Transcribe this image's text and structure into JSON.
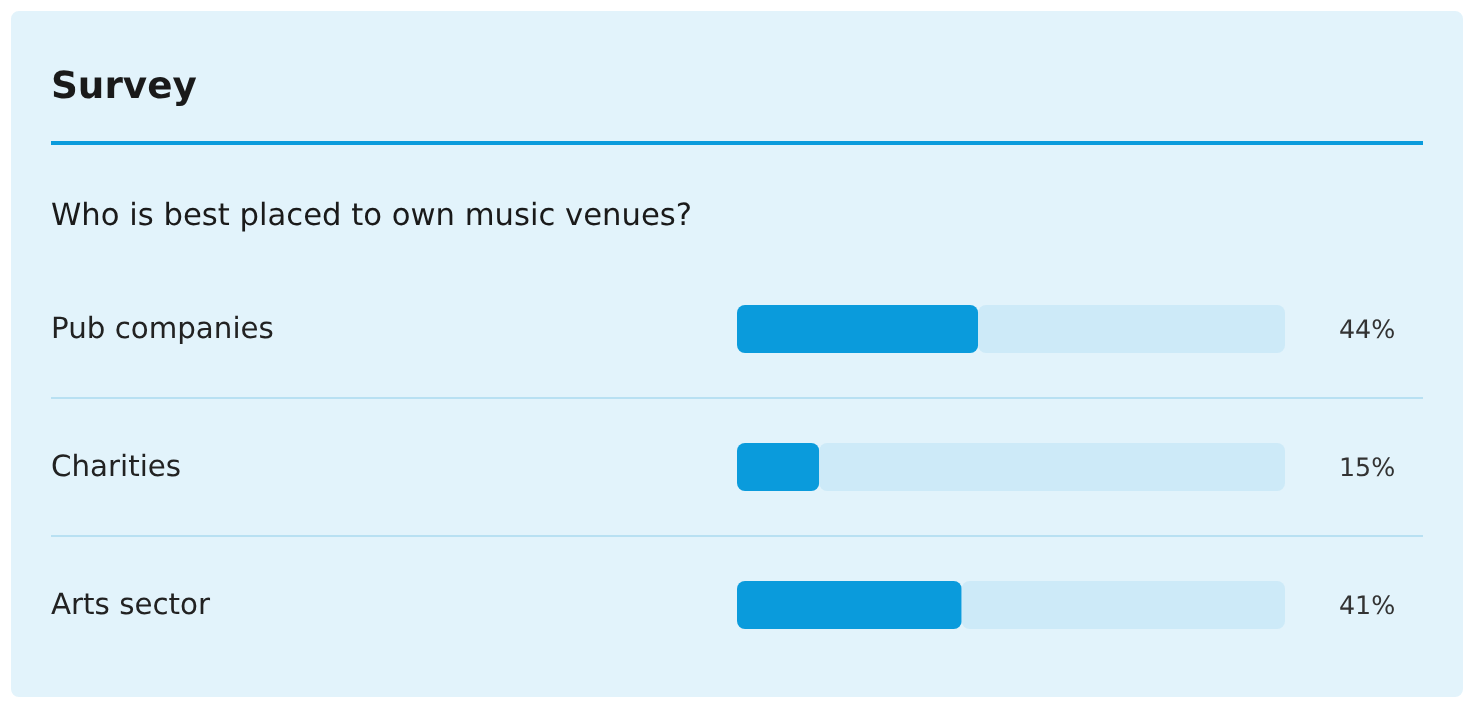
{
  "chart_data": {
    "type": "bar",
    "orientation": "horizontal",
    "stacked": true,
    "title": "Survey",
    "subtitle": "Who is best placed to own music venues?",
    "categories": [
      "Pub companies",
      "Charities",
      "Arts sector"
    ],
    "series": [
      {
        "color": "#0a9bdc",
        "values": [
          44,
          15,
          41
        ],
        "value_labels": [
          "44%",
          "15%",
          "41%"
        ]
      },
      {
        "color": "#cdeaf8",
        "values": [
          56,
          85,
          59
        ]
      }
    ],
    "xlim": [
      0,
      100
    ],
    "tick_labels": false
  }
}
